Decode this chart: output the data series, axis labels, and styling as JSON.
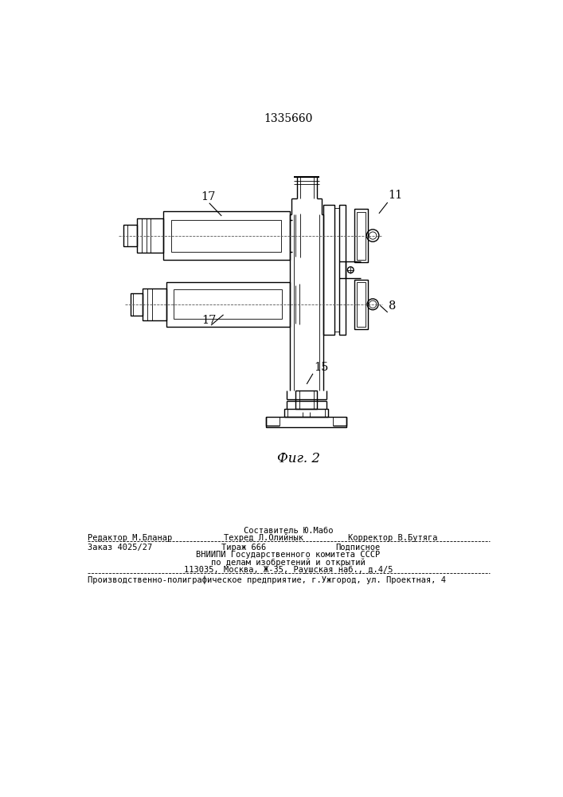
{
  "patent_number": "1335660",
  "fig_caption": "Фиг. 2",
  "background_color": "#ffffff",
  "line_color": "#000000",
  "label_17_top": "17",
  "label_17_bot": "17",
  "label_11": "11",
  "label_8": "8",
  "label_15": "15",
  "footer_line1_center": "Составитель Ю.Мабо",
  "footer_line2_left": "Редактор М.Бланар",
  "footer_line2_center": "Техред Л.Олийнык",
  "footer_line2_right": "Корректор В.Бутяга",
  "footer_line3_left": "Заказ 4025/27",
  "footer_line3_center": "Тираж 666",
  "footer_line3_right": "Подписное",
  "footer_line4": "ВНИИПИ Государственного комитета СССР",
  "footer_line5": "по делам изобретений и открытий",
  "footer_line6": "113035, Москва, Ж-35, Раушская наб., д.4/5",
  "footer_line7": "Производственно-полиграфическое предприятие, г.Ужгород, ул. Проектная, 4"
}
